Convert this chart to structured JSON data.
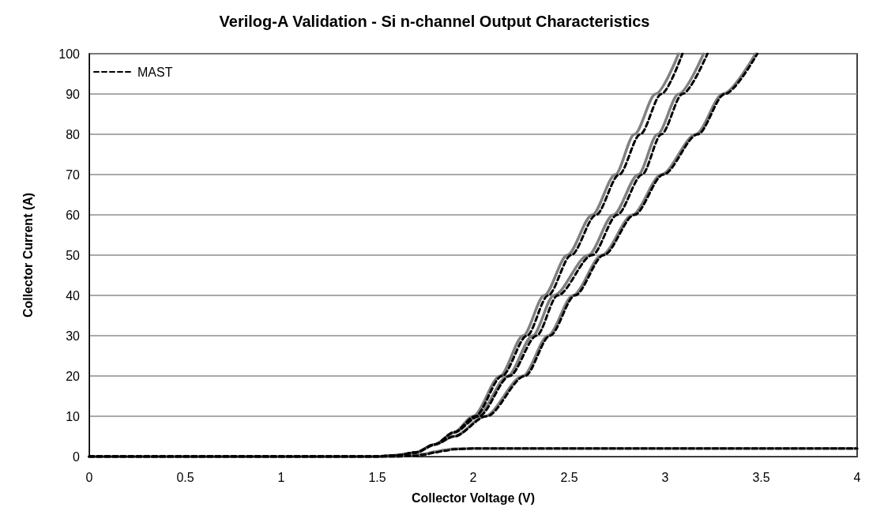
{
  "chart_data": {
    "type": "line",
    "title": "Verilog-A Validation - Si n-channel Output Characteristics",
    "xlabel": "Collector Voltage (V)",
    "ylabel": "Collector Current (A)",
    "xlim": [
      0,
      4
    ],
    "xticks": [
      0,
      0.5,
      1,
      1.5,
      2,
      2.5,
      3,
      3.5,
      4
    ],
    "ylim": [
      0,
      100
    ],
    "yticks": [
      0,
      10,
      20,
      30,
      40,
      50,
      60,
      70,
      80,
      90,
      100
    ],
    "grid": "y",
    "legend": "top left",
    "marker": "none",
    "series": [
      {
        "color": "#808080",
        "line_style": "solid",
        "x": [
          0,
          1.5,
          1.6,
          1.7,
          1.8,
          1.9,
          2.0,
          2.14,
          2.26,
          2.37,
          2.49,
          2.62,
          2.74,
          2.84,
          2.95,
          3.07
        ],
        "values": [
          0,
          0,
          0.3,
          1,
          3,
          6,
          10,
          20,
          30,
          40,
          50,
          60,
          70,
          80,
          90,
          100
        ]
      },
      {
        "color": "#808080",
        "line_style": "solid",
        "x": [
          0,
          1.5,
          1.6,
          1.7,
          1.8,
          1.9,
          2.02,
          2.18,
          2.31,
          2.42,
          2.6,
          2.73,
          2.86,
          2.96,
          3.07,
          3.2
        ],
        "values": [
          0,
          0,
          0.3,
          1,
          3,
          6,
          10,
          20,
          30,
          40,
          50,
          60,
          70,
          80,
          90,
          100
        ]
      },
      {
        "color": "#808080",
        "line_style": "solid",
        "x": [
          0,
          1.5,
          1.6,
          1.7,
          1.8,
          1.9,
          2.06,
          2.26,
          2.39,
          2.52,
          2.67,
          2.83,
          2.98,
          3.16,
          3.3,
          3.47
        ],
        "values": [
          0,
          0,
          0.3,
          1,
          3,
          5,
          10,
          20,
          30,
          40,
          50,
          60,
          70,
          80,
          90,
          100
        ]
      },
      {
        "color": "#808080",
        "line_style": "solid",
        "x": [
          0,
          1.6,
          1.7,
          1.75,
          1.8,
          1.85,
          1.9,
          2.0,
          4
        ],
        "values": [
          0,
          0,
          0.3,
          0.7,
          1.2,
          1.6,
          1.9,
          2,
          2
        ]
      },
      {
        "name": "MAST",
        "color": "#000000",
        "line_style": "dashed",
        "x": [
          0,
          1.5,
          1.6,
          1.7,
          1.8,
          1.9,
          2.01,
          2.15,
          2.28,
          2.39,
          2.51,
          2.64,
          2.76,
          2.87,
          2.98,
          3.09
        ],
        "values": [
          0,
          0,
          0.3,
          1,
          3,
          6,
          10,
          20,
          30,
          40,
          50,
          60,
          70,
          80,
          90,
          100
        ]
      },
      {
        "color": "#000000",
        "line_style": "dashed",
        "x": [
          0,
          1.5,
          1.6,
          1.7,
          1.8,
          1.9,
          2.03,
          2.19,
          2.33,
          2.44,
          2.62,
          2.75,
          2.88,
          2.98,
          3.09,
          3.22
        ],
        "values": [
          0,
          0,
          0.3,
          1,
          3,
          6,
          10,
          20,
          30,
          40,
          50,
          60,
          70,
          80,
          90,
          100
        ]
      },
      {
        "color": "#000000",
        "line_style": "dashed",
        "x": [
          0,
          1.5,
          1.6,
          1.7,
          1.8,
          1.9,
          2.07,
          2.27,
          2.4,
          2.53,
          2.68,
          2.84,
          2.99,
          3.17,
          3.31,
          3.48
        ],
        "values": [
          0,
          0,
          0.3,
          1,
          3,
          5,
          10,
          20,
          30,
          40,
          50,
          60,
          70,
          80,
          90,
          100
        ]
      },
      {
        "color": "#000000",
        "line_style": "dashed",
        "x": [
          0,
          1.6,
          1.7,
          1.75,
          1.8,
          1.85,
          1.9,
          2.0,
          4
        ],
        "values": [
          0,
          0,
          0.2,
          0.5,
          1.0,
          1.4,
          1.8,
          2,
          2
        ]
      }
    ]
  }
}
